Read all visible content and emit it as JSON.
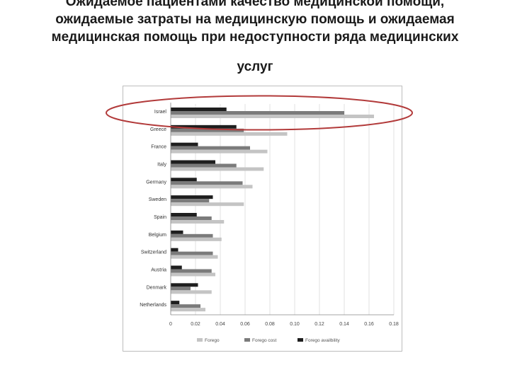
{
  "slide": {
    "title_lines": [
      "Ожидаемое пациентами качество медицинской помощи,",
      "ожидаемые затраты на медицинскую помощь и ожидаемая",
      "медицинская помощь при недоступности ряда медицинских",
      "услуг"
    ]
  },
  "chart_data": {
    "type": "bar",
    "orientation": "horizontal",
    "categories": [
      "Israel",
      "Greece",
      "France",
      "Italy",
      "Germany",
      "Sweden",
      "Spain",
      "Belgium",
      "Switzerland",
      "Austria",
      "Denmark",
      "Netherlands"
    ],
    "series": [
      {
        "name": "Forego availbility",
        "color": "#1e1e1e",
        "values": [
          0.045,
          0.053,
          0.022,
          0.036,
          0.021,
          0.034,
          0.021,
          0.01,
          0.006,
          0.009,
          0.022,
          0.007
        ]
      },
      {
        "name": "Forego cost",
        "color": "#7b7b7b",
        "values": [
          0.14,
          0.059,
          0.064,
          0.053,
          0.058,
          0.031,
          0.033,
          0.034,
          0.034,
          0.033,
          0.016,
          0.024
        ]
      },
      {
        "name": "Forego",
        "color": "#c4c4c4",
        "values": [
          0.164,
          0.094,
          0.078,
          0.075,
          0.066,
          0.059,
          0.043,
          0.041,
          0.038,
          0.036,
          0.033,
          0.028
        ]
      }
    ],
    "legend_order": [
      "Forego",
      "Forego cost",
      "Forego availbility"
    ],
    "legend_position": "bottom",
    "xlim": [
      0,
      0.18
    ],
    "xticks": [
      "0",
      "0.02",
      "0.04",
      "0.06",
      "0.08",
      "0.10",
      "0.12",
      "0.14",
      "0.16",
      "0.18"
    ],
    "grid": true,
    "highlight": {
      "category": "Israel",
      "shape": "ellipse",
      "color": "#b23a3a"
    }
  }
}
